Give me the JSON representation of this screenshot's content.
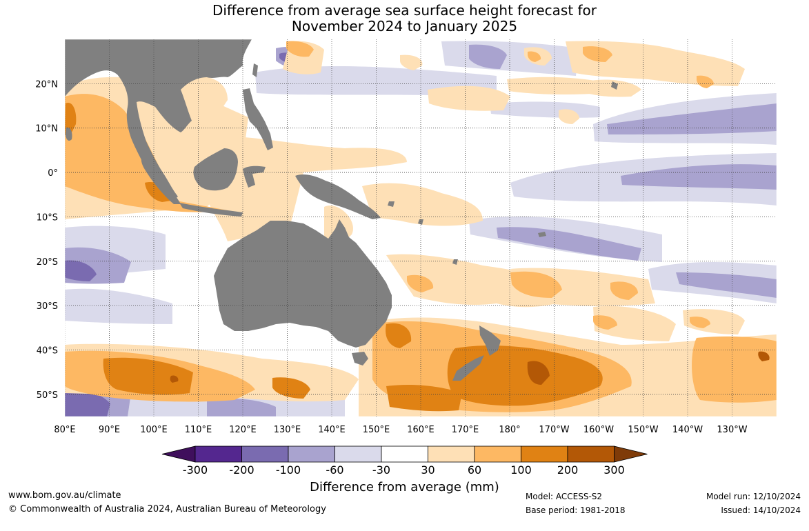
{
  "title": {
    "line1": "Difference from average sea surface height forecast for",
    "line2": "November 2024 to January 2025"
  },
  "map": {
    "longitude_ticks": [
      "80°E",
      "90°E",
      "100°E",
      "110°E",
      "120°E",
      "130°E",
      "140°E",
      "150°E",
      "160°E",
      "170°E",
      "180°",
      "170°W",
      "160°W",
      "150°W",
      "140°W",
      "130°W"
    ],
    "latitude_ticks": [
      "20°N",
      "10°N",
      "0°",
      "10°S",
      "20°S",
      "30°S",
      "40°S",
      "50°S"
    ],
    "extent": {
      "lon_min": 80,
      "lon_max": 240,
      "lat_min": -55,
      "lat_max": 30
    },
    "land_color": "#808080"
  },
  "colorbar": {
    "title": "Difference from average (mm)",
    "labels": [
      "-300",
      "-200",
      "-100",
      "-60",
      "-30",
      "30",
      "60",
      "100",
      "200",
      "300"
    ],
    "colors": [
      "#3f0f5c",
      "#54278f",
      "#7a6bb0",
      "#a9a3cf",
      "#dadaeb",
      "#ffffff",
      "#fee0b6",
      "#fdb863",
      "#e08214",
      "#b35806",
      "#7f3b08"
    ]
  },
  "footer": {
    "url": "www.bom.gov.au/climate",
    "copyright": "© Commonwealth of Australia 2024, Australian Bureau of Meteorology",
    "model": "Model: ACCESS-S2",
    "base_period": "Base period: 1981-2018",
    "model_run": "Model run: 12/10/2024",
    "issued": "Issued: 14/10/2024"
  }
}
